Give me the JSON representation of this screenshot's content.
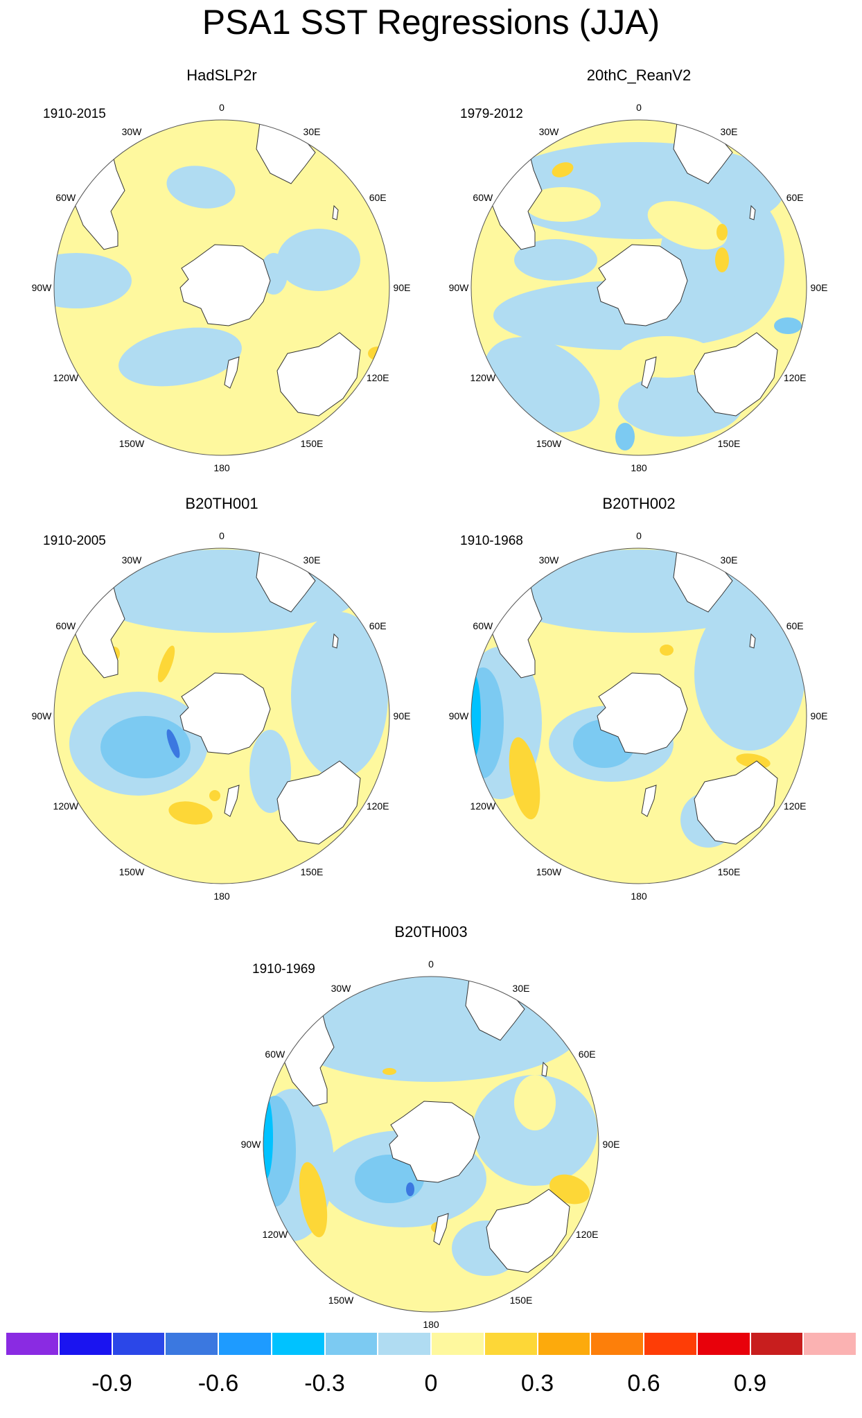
{
  "figure": {
    "title": "PSA1 SST Regressions (JJA)"
  },
  "panels": [
    {
      "title": "HadSLP2r",
      "period": "1910-2015"
    },
    {
      "title": "20thC_ReanV2",
      "period": "1979-2012"
    },
    {
      "title": "B20TH001",
      "period": "1910-2005"
    },
    {
      "title": "B20TH002",
      "period": "1910-1968"
    },
    {
      "title": "B20TH003",
      "period": "1910-1969"
    }
  ],
  "longitude_labels": [
    "0",
    "30E",
    "60E",
    "90E",
    "120E",
    "150E",
    "180",
    "150W",
    "120W",
    "90W",
    "60W",
    "30W"
  ],
  "colorbar": {
    "colors": [
      "#8a2be2",
      "#1a14f0",
      "#2b47e8",
      "#3b78e0",
      "#1e9bff",
      "#00c2ff",
      "#7ccaf2",
      "#b0dcf2",
      "#fef89e",
      "#fdd737",
      "#fdaa0c",
      "#fd7f0a",
      "#fe3d06",
      "#e8010b",
      "#c81e1e",
      "#fbb2b2"
    ],
    "tick_labels": [
      "-0.9",
      "-0.6",
      "-0.3",
      "0",
      "0.3",
      "0.6",
      "0.9"
    ],
    "tick_values": [
      -0.9,
      -0.6,
      -0.3,
      0,
      0.3,
      0.6,
      0.9
    ]
  },
  "map_colors": {
    "land": "#ffffff",
    "coast": "#333333",
    "rim": "#555555"
  }
}
